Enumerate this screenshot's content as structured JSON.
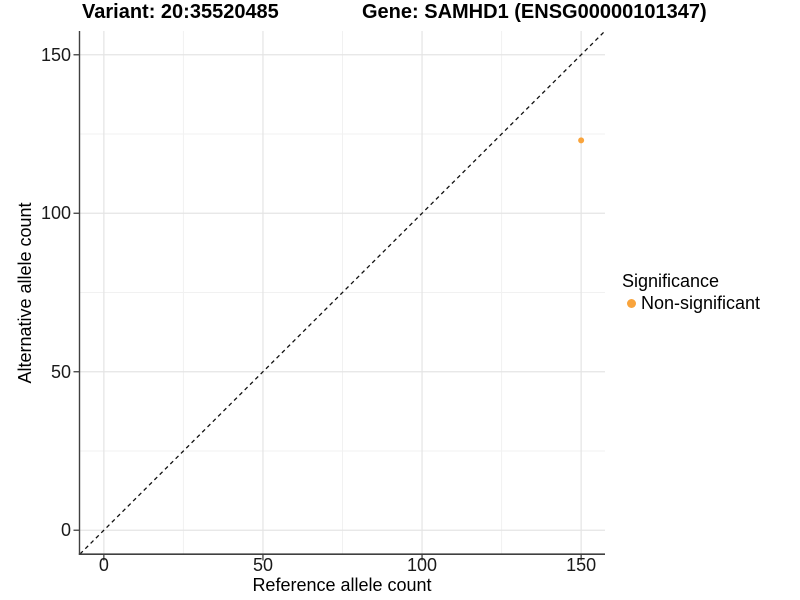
{
  "titles": {
    "variant": "Variant: 20:35520485",
    "gene": "Gene: SAMHD1 (ENSG00000101347)"
  },
  "legend": {
    "title": "Significance",
    "items": [
      {
        "label": "Non-significant",
        "color": "#F9A43C"
      }
    ]
  },
  "chart_data": {
    "type": "scatter",
    "title": "Variant: 20:35520485 | Gene: SAMHD1 (ENSG00000101347)",
    "xlabel": "Reference allele count",
    "ylabel": "Alternative allele count",
    "xlim": [
      -7.5,
      157.5
    ],
    "ylim": [
      -7.5,
      157.5
    ],
    "x_ticks": [
      0,
      50,
      100,
      150
    ],
    "y_ticks": [
      0,
      50,
      100,
      150
    ],
    "x_minor_ticks": [
      25,
      75,
      125
    ],
    "y_minor_ticks": [
      25,
      75,
      125
    ],
    "grid": "major+minor",
    "legend_position": "right",
    "series": [
      {
        "name": "Non-significant",
        "color": "#F9A43C",
        "points": [
          {
            "x": 150,
            "y": 123
          }
        ]
      }
    ],
    "reference_line": {
      "type": "identity",
      "style": "dashed",
      "from": [
        -7.5,
        -7.5
      ],
      "to": [
        157.5,
        157.5
      ]
    }
  },
  "colors": {
    "background": "#FFFFFF",
    "point": "#F9A43C",
    "grid_major": "#E4E4E4",
    "grid_minor": "#F1F1F1",
    "axis_line": "#404040",
    "tick_mark": "#404040",
    "reference_line": "#111111",
    "text": "#000000",
    "tick_text": "#1A1A1A"
  }
}
